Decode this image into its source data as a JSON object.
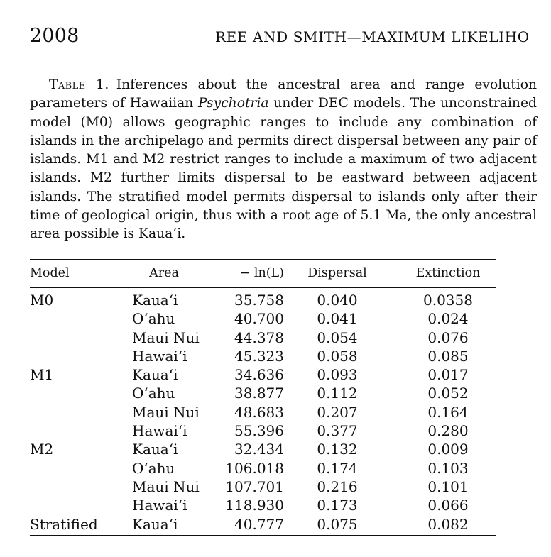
{
  "header": {
    "page_number": "2008",
    "running_head": "REE AND SMITH—MAXIMUM LIKELIHO"
  },
  "caption": {
    "label": "Table 1.",
    "text_before_italic": "Inferences about the ancestral area and range evolution parameters of Hawaiian",
    "italic_term": "Psychotria",
    "text_after_italic": "under DEC models. The uncon­strained model (M0) allows geographic ranges to include any combina­tion of islands in the archipelago and permits direct dispersal between any pair of islands. M1 and M2 restrict ranges to include a maximum of two adjacent islands. M2 further limits dispersal to be eastward between adjacent islands. The stratified model permits dispersal to is­lands only after their time of geological origin, thus with a root age of 5.1 Ma, the only ancestral area possible is Kaua‘i."
  },
  "table": {
    "columns": [
      "Model",
      "Area",
      "− ln(L)",
      "Dispersal",
      "Extinction"
    ],
    "rows": [
      {
        "model": "M0",
        "area": "Kaua‘i",
        "neg_lnL": "35.758",
        "dispersal": "0.040",
        "extinction": "0.0358"
      },
      {
        "model": "",
        "area": "O‘ahu",
        "neg_lnL": "40.700",
        "dispersal": "0.041",
        "extinction": "0.024"
      },
      {
        "model": "",
        "area": "Maui Nui",
        "neg_lnL": "44.378",
        "dispersal": "0.054",
        "extinction": "0.076"
      },
      {
        "model": "",
        "area": "Hawai‘i",
        "neg_lnL": "45.323",
        "dispersal": "0.058",
        "extinction": "0.085"
      },
      {
        "model": "M1",
        "area": "Kaua‘i",
        "neg_lnL": "34.636",
        "dispersal": "0.093",
        "extinction": "0.017"
      },
      {
        "model": "",
        "area": "O‘ahu",
        "neg_lnL": "38.877",
        "dispersal": "0.112",
        "extinction": "0.052"
      },
      {
        "model": "",
        "area": "Maui Nui",
        "neg_lnL": "48.683",
        "dispersal": "0.207",
        "extinction": "0.164"
      },
      {
        "model": "",
        "area": "Hawai‘i",
        "neg_lnL": "55.396",
        "dispersal": "0.377",
        "extinction": "0.280"
      },
      {
        "model": "M2",
        "area": "Kaua‘i",
        "neg_lnL": "32.434",
        "dispersal": "0.132",
        "extinction": "0.009"
      },
      {
        "model": "",
        "area": "O‘ahu",
        "neg_lnL": "106.018",
        "dispersal": "0.174",
        "extinction": "0.103"
      },
      {
        "model": "",
        "area": "Maui Nui",
        "neg_lnL": "107.701",
        "dispersal": "0.216",
        "extinction": "0.101"
      },
      {
        "model": "",
        "area": "Hawai‘i",
        "neg_lnL": "118.930",
        "dispersal": "0.173",
        "extinction": "0.066"
      },
      {
        "model": "Stratified",
        "area": "Kaua‘i",
        "neg_lnL": "40.777",
        "dispersal": "0.075",
        "extinction": "0.082"
      }
    ]
  }
}
